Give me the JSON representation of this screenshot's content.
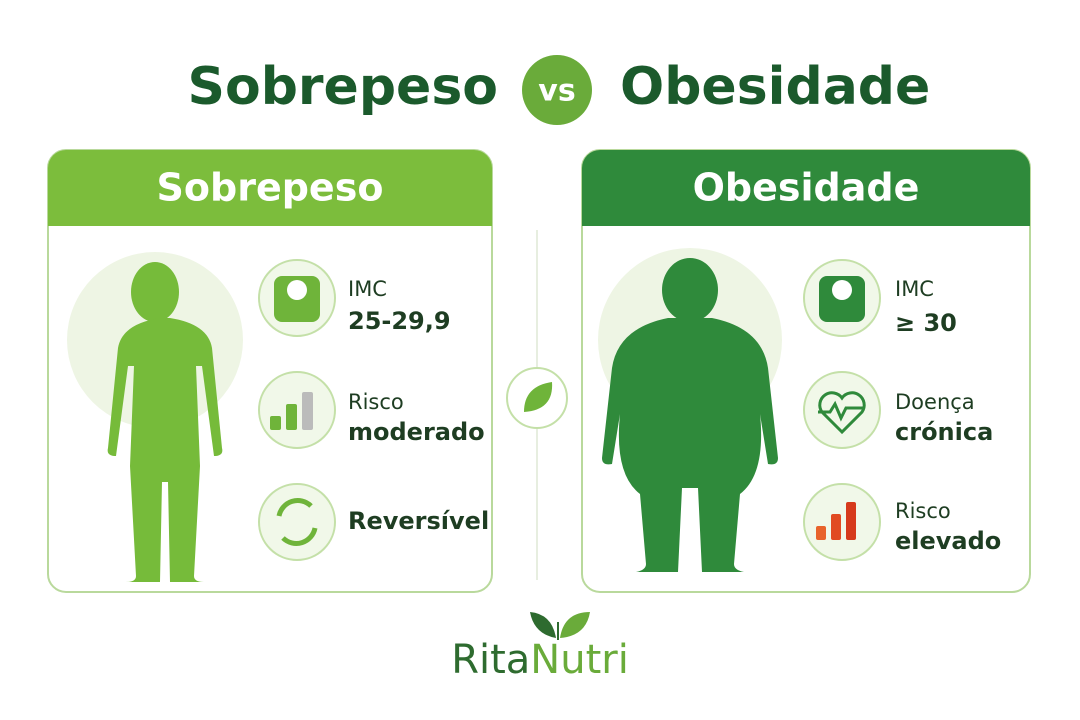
{
  "title": {
    "left": "Sobrepeso",
    "vs": "vs",
    "right": "Obesidade"
  },
  "panels": [
    {
      "header": "Sobrepeso",
      "items": [
        {
          "label": "IMC",
          "value": "25-29,9"
        },
        {
          "label": "Risco",
          "value": "moderado"
        },
        {
          "value": "Reversível"
        }
      ]
    },
    {
      "header": "Obesidade",
      "items": [
        {
          "label": "IMC",
          "value": "≥ 30"
        },
        {
          "label": "Doença",
          "value": "crónica"
        },
        {
          "label": "Risco",
          "value": "elevado"
        }
      ]
    }
  ],
  "logo": {
    "first": "Rita",
    "second": "Nutri"
  }
}
